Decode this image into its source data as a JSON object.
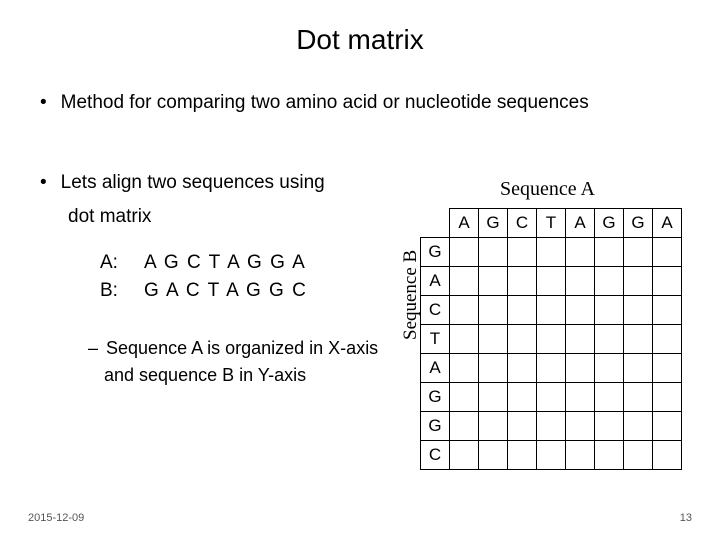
{
  "title": "Dot matrix",
  "bullet1": "Method for comparing two amino acid or nucleotide sequences",
  "seqA_label": "Sequence A",
  "seqB_label": "Sequence B",
  "bullet2": "Lets align two sequences using",
  "bullet2_line2": "dot matrix",
  "seqA_prefix": "A:",
  "seqA_text": "A G C T A G G A",
  "seqB_prefix": "B:",
  "seqB_text": "G A C T A G G C",
  "sub_bullet": "Sequence A is organized in X-axis",
  "sub_bullet_line2": "and sequence B in Y-axis",
  "footer_date": "2015-12-09",
  "footer_page": "13",
  "matrix": {
    "cols": [
      "A",
      "G",
      "C",
      "T",
      "A",
      "G",
      "G",
      "A"
    ],
    "rows": [
      "G",
      "A",
      "C",
      "T",
      "A",
      "G",
      "G",
      "C"
    ]
  }
}
